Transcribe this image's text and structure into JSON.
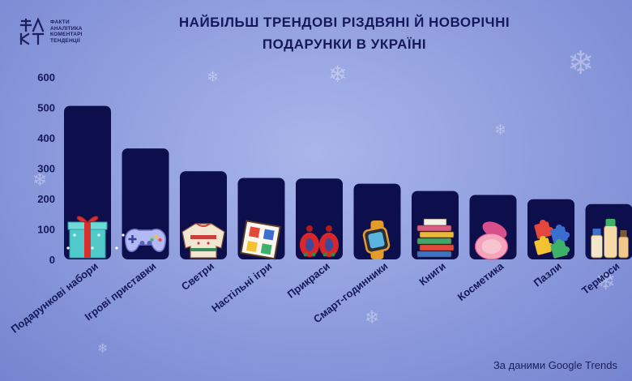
{
  "logo": {
    "mark": "ФАКТ",
    "lines": [
      "ФАКТИ",
      "АНАЛІТИКА",
      "КОМЕНТАРІ",
      "ТЕНДЕНЦІЇ"
    ]
  },
  "title_line1": "НАЙБІЛЬШ ТРЕНДОВІ РІЗДВЯНІ Й НОВОРІЧНІ",
  "title_line2": "ПОДАРУНКИ В УКРАЇНІ",
  "source": "За даними Google Trends",
  "colors": {
    "bar": "#0d0f4c",
    "text": "#15195a",
    "background": "#8d9bdd"
  },
  "chart_data": {
    "type": "bar",
    "categories": [
      "Подарункові набори",
      "Ігрові приставки",
      "Светри",
      "Настільні ігри",
      "Прикраси",
      "Смарт-годинники",
      "Книги",
      "Косметика",
      "Пазли",
      "Термоси"
    ],
    "values": [
      505,
      365,
      290,
      268,
      266,
      249,
      225,
      212,
      198,
      182
    ],
    "icons": [
      "gift-box-icon",
      "gamepad-icon",
      "sweater-icon",
      "board-game-icon",
      "earrings-icon",
      "smartwatch-icon",
      "books-icon",
      "cosmetics-icon",
      "puzzle-icon",
      "thermos-icon"
    ],
    "yticks": [
      "0",
      "100",
      "200",
      "300",
      "400",
      "500",
      "600"
    ],
    "ylim": [
      0,
      600
    ],
    "grid": false,
    "legend": "none"
  }
}
